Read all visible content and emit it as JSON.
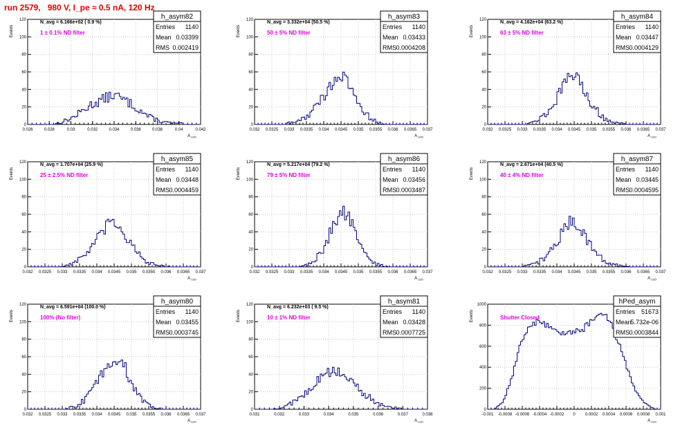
{
  "page_title": "run 2579,   980 V, I_pe ≈ 0.5 nA, 120 Hz",
  "stat_labels": {
    "entries": "Entries",
    "mean": "Mean",
    "rms": "RMS"
  },
  "y_axis_label": "Events",
  "x_axis_label": "A",
  "x_axis_label_sub": "LED",
  "colors": {
    "histogram": "#000080",
    "annotation": "#e000e0",
    "title": "#e00000",
    "grid": "#c8c8c8"
  },
  "chart_data": [
    {
      "type": "histogram",
      "name": "h_asym82",
      "entries": "1140",
      "mean": "0.03399",
      "rms": "0.002419",
      "n_avg": "N_avg = 6.166e+02 ( 0.9 %)",
      "note": "1 ± 0.1% ND filter",
      "xlim": [
        0.026,
        0.042
      ],
      "ylim": [
        0,
        120
      ],
      "xticks": [
        "0.026",
        "0.028",
        "0.03",
        "0.032",
        "0.034",
        "0.036",
        "0.038",
        "0.04",
        "0.042"
      ],
      "yticks": [
        "0",
        "20",
        "40",
        "60",
        "80",
        "100",
        "120"
      ],
      "bin_width": 0.00016,
      "profile": [
        [
          0.02833,
          0
        ],
        [
          0.0292,
          3
        ],
        [
          0.0302,
          8
        ],
        [
          0.031,
          15
        ],
        [
          0.0318,
          22
        ],
        [
          0.0325,
          26
        ],
        [
          0.0332,
          30
        ],
        [
          0.034,
          34
        ],
        [
          0.0346,
          30
        ],
        [
          0.0355,
          24
        ],
        [
          0.0364,
          16
        ],
        [
          0.0372,
          9
        ],
        [
          0.0382,
          4
        ],
        [
          0.039,
          2
        ],
        [
          0.04,
          1
        ],
        [
          0.0405,
          0
        ]
      ]
    },
    {
      "type": "histogram",
      "name": "h_asym83",
      "entries": "1140",
      "mean": "0.03433",
      "rms": "0.0004208",
      "n_avg": "N_avg = 3.332e+04 (50.5 %)",
      "note": "50 ± 5% ND filter",
      "xlim": [
        0.032,
        0.037
      ],
      "ylim": [
        0,
        120
      ],
      "xticks": [
        "0.032",
        "0.0325",
        "0.033",
        "0.0335",
        "0.034",
        "0.0345",
        "0.035",
        "0.0355",
        "0.036",
        "0.0365",
        "0.037"
      ],
      "yticks": [
        "0",
        "20",
        "40",
        "60",
        "80",
        "100",
        "120"
      ],
      "bin_width": 5e-05,
      "profile": [
        [
          0.03285,
          0
        ],
        [
          0.0332,
          3
        ],
        [
          0.03355,
          10
        ],
        [
          0.0338,
          22
        ],
        [
          0.03405,
          35
        ],
        [
          0.03425,
          48
        ],
        [
          0.0344,
          55
        ],
        [
          0.0346,
          52
        ],
        [
          0.0348,
          40
        ],
        [
          0.03505,
          22
        ],
        [
          0.03535,
          6
        ],
        [
          0.0356,
          2
        ],
        [
          0.0358,
          0
        ]
      ]
    },
    {
      "type": "histogram",
      "name": "h_asym84",
      "entries": "1140",
      "mean": "0.03447",
      "rms": "0.0004129",
      "n_avg": "N_avg = 4.162e+04 (63.2 %)",
      "note": "63 ± 5% ND filter",
      "xlim": [
        0.032,
        0.037
      ],
      "ylim": [
        0,
        120
      ],
      "xticks": [
        "0.032",
        "0.0325",
        "0.033",
        "0.0335",
        "0.034",
        "0.0345",
        "0.035",
        "0.0355",
        "0.036",
        "0.0365",
        "0.037"
      ],
      "yticks": [
        "0",
        "20",
        "40",
        "60",
        "80",
        "100",
        "120"
      ],
      "bin_width": 5e-05,
      "profile": [
        [
          0.033,
          0
        ],
        [
          0.03335,
          3
        ],
        [
          0.0337,
          12
        ],
        [
          0.034,
          30
        ],
        [
          0.03425,
          48
        ],
        [
          0.03445,
          58
        ],
        [
          0.03465,
          50
        ],
        [
          0.03485,
          35
        ],
        [
          0.0351,
          18
        ],
        [
          0.0354,
          6
        ],
        [
          0.0357,
          2
        ],
        [
          0.036,
          0
        ]
      ]
    },
    {
      "type": "histogram",
      "name": "h_asym85",
      "entries": "1140",
      "mean": "0.03448",
      "rms": "0.0004459",
      "n_avg": "N_avg = 1.707e+04 (25.9 %)",
      "note": "25 ± 2.5% ND filter",
      "xlim": [
        0.032,
        0.037
      ],
      "ylim": [
        0,
        120
      ],
      "xticks": [
        "0.032",
        "0.0325",
        "0.033",
        "0.0335",
        "0.034",
        "0.0345",
        "0.035",
        "0.0355",
        "0.036",
        "0.0365",
        "0.037"
      ],
      "yticks": [
        "0",
        "20",
        "40",
        "60",
        "80",
        "100",
        "120"
      ],
      "bin_width": 5e-05,
      "profile": [
        [
          0.03295,
          0
        ],
        [
          0.0333,
          4
        ],
        [
          0.03365,
          13
        ],
        [
          0.03395,
          28
        ],
        [
          0.0342,
          42
        ],
        [
          0.03445,
          52
        ],
        [
          0.03465,
          46
        ],
        [
          0.0349,
          32
        ],
        [
          0.03515,
          16
        ],
        [
          0.03545,
          5
        ],
        [
          0.0358,
          1
        ],
        [
          0.0361,
          0
        ]
      ]
    },
    {
      "type": "histogram",
      "name": "h_asym86",
      "entries": "1140",
      "mean": "0.03456",
      "rms": "0.0003487",
      "n_avg": "N_avg = 5.217e+04 (79.2 %)",
      "note": "79 ± 5% ND filter",
      "xlim": [
        0.032,
        0.037
      ],
      "ylim": [
        0,
        120
      ],
      "xticks": [
        "0.032",
        "0.0325",
        "0.033",
        "0.0335",
        "0.034",
        "0.0345",
        "0.035",
        "0.0355",
        "0.036",
        "0.0365",
        "0.037"
      ],
      "yticks": [
        "0",
        "20",
        "40",
        "60",
        "80",
        "100",
        "120"
      ],
      "bin_width": 5e-05,
      "profile": [
        [
          0.0333,
          0
        ],
        [
          0.03365,
          4
        ],
        [
          0.03395,
          18
        ],
        [
          0.0342,
          40
        ],
        [
          0.0344,
          58
        ],
        [
          0.03455,
          65
        ],
        [
          0.03475,
          55
        ],
        [
          0.03495,
          35
        ],
        [
          0.0352,
          14
        ],
        [
          0.03545,
          4
        ],
        [
          0.0357,
          1
        ],
        [
          0.0359,
          0
        ]
      ]
    },
    {
      "type": "histogram",
      "name": "h_asym87",
      "entries": "1140",
      "mean": "0.03445",
      "rms": "0.0004595",
      "n_avg": "N_avg = 2.671e+04 (40.5 %)",
      "note": "40 ± 4% ND filter",
      "xlim": [
        0.032,
        0.037
      ],
      "ylim": [
        0,
        120
      ],
      "xticks": [
        "0.032",
        "0.0325",
        "0.033",
        "0.0335",
        "0.034",
        "0.0345",
        "0.035",
        "0.0355",
        "0.036",
        "0.0365",
        "0.037"
      ],
      "yticks": [
        "0",
        "20",
        "40",
        "60",
        "80",
        "100",
        "120"
      ],
      "bin_width": 5e-05,
      "profile": [
        [
          0.033,
          0
        ],
        [
          0.03335,
          3
        ],
        [
          0.03365,
          10
        ],
        [
          0.03395,
          25
        ],
        [
          0.0342,
          42
        ],
        [
          0.03445,
          55
        ],
        [
          0.03465,
          45
        ],
        [
          0.0349,
          30
        ],
        [
          0.03515,
          15
        ],
        [
          0.03545,
          5
        ],
        [
          0.0358,
          1
        ],
        [
          0.0361,
          0
        ]
      ]
    },
    {
      "type": "histogram",
      "name": "h_asym80",
      "entries": "1140",
      "mean": "0.03455",
      "rms": "0.0003745",
      "n_avg": "N_avg = 6.591e+04 (100.0 %)",
      "note": "100% (No filter)",
      "xlim": [
        0.032,
        0.037
      ],
      "ylim": [
        0,
        120
      ],
      "xticks": [
        "0.032",
        "0.0325",
        "0.033",
        "0.0335",
        "0.034",
        "0.0345",
        "0.035",
        "0.0355",
        "0.036",
        "0.0365",
        "0.037"
      ],
      "yticks": [
        "0",
        "20",
        "40",
        "60",
        "80",
        "100",
        "120"
      ],
      "bin_width": 5e-05,
      "profile": [
        [
          0.0331,
          0
        ],
        [
          0.03345,
          4
        ],
        [
          0.03375,
          15
        ],
        [
          0.03405,
          35
        ],
        [
          0.0343,
          50
        ],
        [
          0.03455,
          58
        ],
        [
          0.03475,
          52
        ],
        [
          0.03495,
          36
        ],
        [
          0.0352,
          15
        ],
        [
          0.0355,
          4
        ],
        [
          0.0358,
          1
        ],
        [
          0.036,
          0
        ]
      ]
    },
    {
      "type": "histogram",
      "name": "h_asym81",
      "entries": "1140",
      "mean": "0.03428",
      "rms": "0.0007725",
      "n_avg": "N_avg = 6.232e+03 ( 9.5 %)",
      "note": "10 ± 1% ND filter",
      "xlim": [
        0.031,
        0.038
      ],
      "ylim": [
        0,
        120
      ],
      "xticks": [
        "0.031",
        "0.032",
        "0.033",
        "0.034",
        "0.035",
        "0.036",
        "0.037",
        "0.038"
      ],
      "yticks": [
        "0",
        "20",
        "40",
        "60",
        "80",
        "100",
        "120"
      ],
      "bin_width": 7e-05,
      "profile": [
        [
          0.0318,
          0
        ],
        [
          0.0323,
          4
        ],
        [
          0.0328,
          12
        ],
        [
          0.0333,
          26
        ],
        [
          0.0338,
          38
        ],
        [
          0.0342,
          44
        ],
        [
          0.0346,
          40
        ],
        [
          0.035,
          30
        ],
        [
          0.0355,
          16
        ],
        [
          0.036,
          6
        ],
        [
          0.0365,
          2
        ],
        [
          0.037,
          0
        ]
      ]
    },
    {
      "type": "histogram",
      "name": "hPed_asym",
      "entries": "51673",
      "mean": "5.732e-06",
      "rms": "0.0003844",
      "n_avg": "",
      "note": "Shutter Closed",
      "xlim": [
        -0.001,
        0.001
      ],
      "ylim": [
        0,
        1000
      ],
      "xticks": [
        "-0.001",
        "-0.0008",
        "-0.0006",
        "-0.0004",
        "-0.0002",
        "0",
        "0.0002",
        "0.0004",
        "0.0006",
        "0.0008",
        "0.001"
      ],
      "yticks": [
        "0",
        "200",
        "400",
        "600",
        "800",
        "1000"
      ],
      "bin_width": 2e-05,
      "profile": [
        [
          -0.00092,
          0
        ],
        [
          -0.00082,
          80
        ],
        [
          -0.00072,
          300
        ],
        [
          -0.00062,
          620
        ],
        [
          -0.00052,
          800
        ],
        [
          -0.0004,
          840
        ],
        [
          -0.0003,
          790
        ],
        [
          -0.0002,
          745
        ],
        [
          -0.0001,
          725
        ],
        [
          0.0,
          735
        ],
        [
          0.0001,
          760
        ],
        [
          0.0002,
          840
        ],
        [
          0.0003,
          920
        ],
        [
          0.0004,
          860
        ],
        [
          0.0005,
          670
        ],
        [
          0.0006,
          420
        ],
        [
          0.0007,
          200
        ],
        [
          0.0008,
          70
        ],
        [
          0.0009,
          15
        ],
        [
          0.00095,
          0
        ]
      ]
    }
  ]
}
